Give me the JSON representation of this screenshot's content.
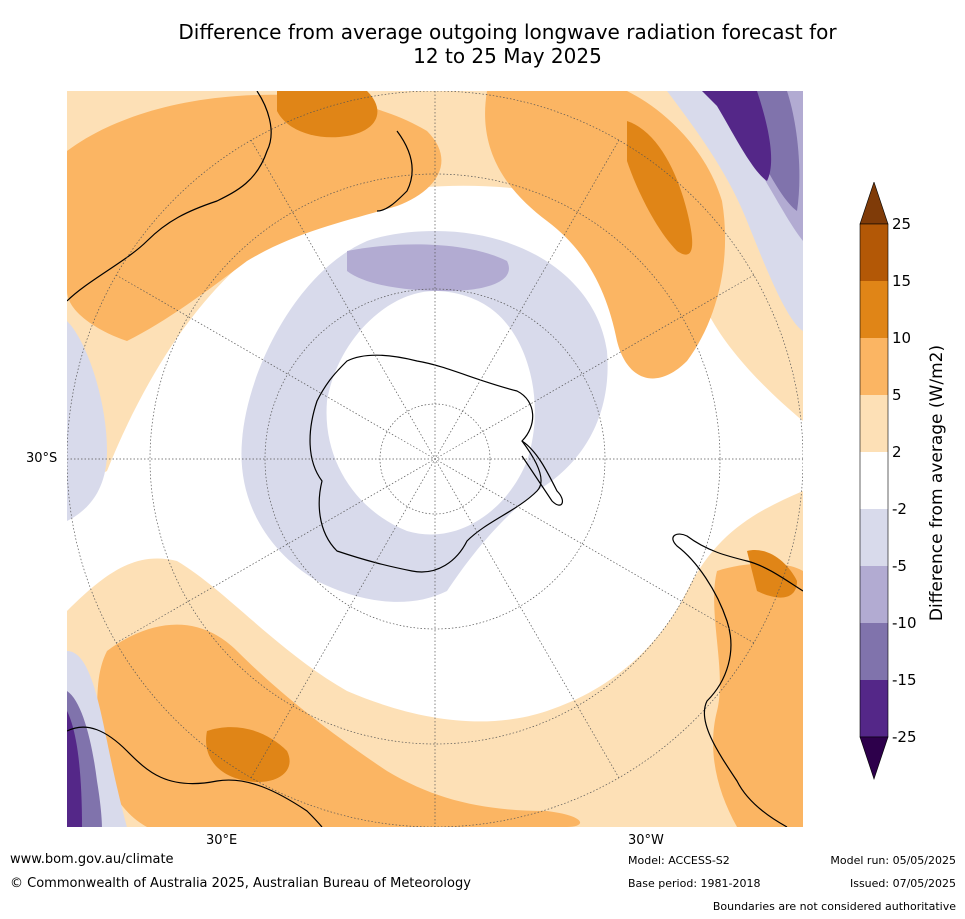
{
  "title": {
    "line1": "Difference from average outgoing longwave radiation forecast for",
    "line2": "12 to 25 May 2025"
  },
  "map": {
    "lat_label": "30°S",
    "lon_labels": [
      "30°E",
      "30°W"
    ],
    "projection": "south polar stereographic",
    "colors": {
      "pos_2_5": "#fde0b6",
      "pos_5_10": "#fbb563",
      "pos_10_15": "#e08517",
      "pos_15_25": "#b35806",
      "neg_2_5": "#d8daeb",
      "neg_5_10": "#b2abd2",
      "neg_10_15": "#8073ac",
      "neg_15_25": "#542788",
      "coast": "#000000",
      "grid": "#555555"
    }
  },
  "colorbar": {
    "label": "Difference from average (W/m2)",
    "ticks": [
      "25",
      "15",
      "10",
      "5",
      "2",
      "-2",
      "-5",
      "-10",
      "-15",
      "-25"
    ],
    "bands": [
      "#b35806",
      "#e08517",
      "#fbb563",
      "#fde0b6",
      "#ffffff",
      "#d8daeb",
      "#b2abd2",
      "#8073ac",
      "#542788"
    ],
    "top_arrow": "#7f3b08",
    "bottom_arrow": "#2d004b"
  },
  "footer": {
    "website": "www.bom.gov.au/climate",
    "copyright": "© Commonwealth of Australia 2025, Australian Bureau of Meteorology",
    "model": "Model: ACCESS-S2",
    "base_period": "Base period: 1981-2018",
    "model_run": "Model run: 05/05/2025",
    "issued": "Issued: 07/05/2025",
    "disclaimer": "Boundaries are not considered authoritative"
  }
}
